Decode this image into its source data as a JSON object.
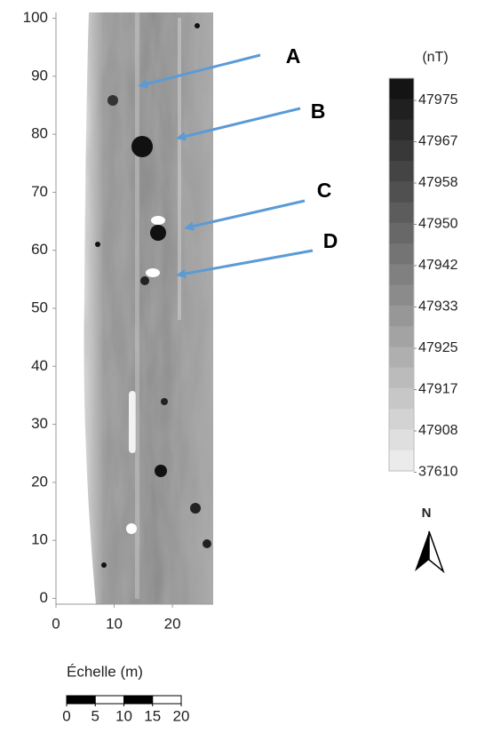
{
  "chart_data": {
    "type": "raster",
    "xlim": [
      0,
      27
    ],
    "ylim": [
      -1,
      101
    ],
    "xticks": [
      0,
      10,
      20
    ],
    "yticks": [
      0,
      10,
      20,
      30,
      40,
      50,
      60,
      70,
      80,
      90,
      100
    ],
    "annotations": [
      "A",
      "B",
      "C",
      "D"
    ],
    "legend_title": "(nT)",
    "legend_labels": [
      47975,
      47967,
      47958,
      47950,
      47942,
      47933,
      47925,
      47917,
      47908,
      37610
    ],
    "north": "N",
    "scale_title": "Échelle (m)",
    "scale_ticks": [
      0,
      5,
      10,
      15,
      20
    ],
    "arrow_color": "#5b9bd5"
  }
}
